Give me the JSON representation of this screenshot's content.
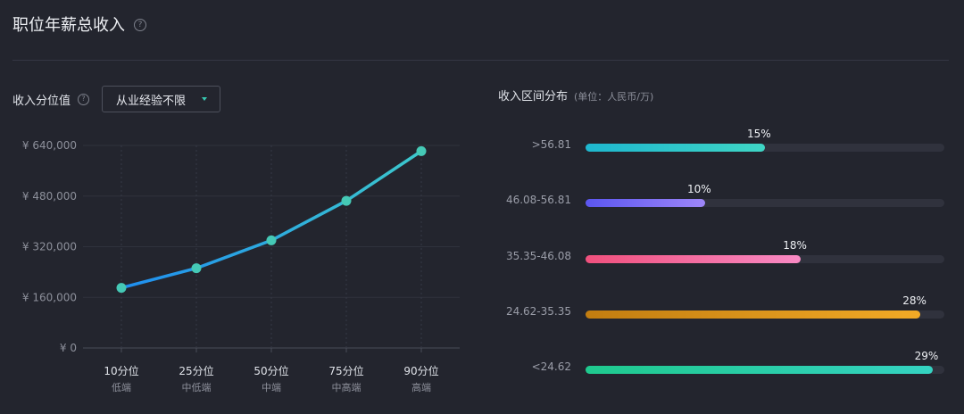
{
  "header": {
    "title": "职位年薪总收入",
    "help_glyph": "?"
  },
  "left_panel": {
    "title": "收入分位值",
    "help_glyph": "?",
    "experience_filter": "从业经验不限"
  },
  "right_panel": {
    "title": "收入区间分布",
    "unit_note": "(单位：人民币/万)"
  },
  "colors": {
    "background": "#23252e",
    "line_start": "#1f8ef0",
    "line_end": "#3cc8cc",
    "marker": "#45c9b6",
    "dropdown_caret": "#37c9b2"
  },
  "chart_data": [
    {
      "type": "line",
      "categories": [
        "10分位",
        "25分位",
        "50分位",
        "75分位",
        "90分位"
      ],
      "category_sublabels": [
        "低端",
        "中低端",
        "中端",
        "中高端",
        "高端"
      ],
      "values": [
        190000,
        252000,
        340000,
        465000,
        622000
      ],
      "ylim": [
        0,
        640000
      ],
      "yticks": [
        0,
        160000,
        320000,
        480000,
        640000
      ],
      "ytick_labels": [
        "¥ 0",
        "¥ 160,000",
        "¥ 320,000",
        "¥ 480,000",
        "¥ 640,000"
      ],
      "grid": true,
      "xlabel": "",
      "ylabel": ""
    },
    {
      "type": "bar",
      "orientation": "horizontal",
      "categories": [
        ">56.81",
        "46.08-56.81",
        "35.35-46.08",
        "24.62-35.35",
        "<24.62"
      ],
      "values": [
        15,
        10,
        18,
        28,
        29
      ],
      "value_labels": [
        "15%",
        "10%",
        "18%",
        "28%",
        "29%"
      ],
      "xlim": [
        0,
        30
      ],
      "gradients": [
        [
          "#1eb7cf",
          "#3fd6c5"
        ],
        [
          "#5b56f0",
          "#9d86f7"
        ],
        [
          "#f0507d",
          "#f88ac4"
        ],
        [
          "#c27d10",
          "#f2aa26"
        ],
        [
          "#1fc98e",
          "#35d3c2"
        ]
      ]
    }
  ]
}
